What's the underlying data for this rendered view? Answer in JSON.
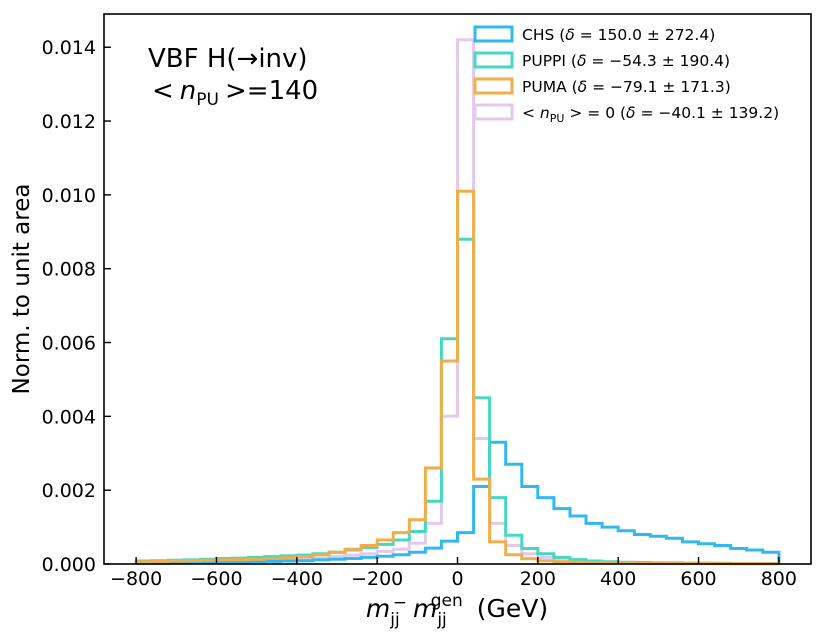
{
  "chart_data": {
    "type": "histogram-step",
    "annotation": {
      "process_text": "VBF H(→inv)",
      "pileup_lt": "<",
      "pileup_var": "n",
      "pileup_sub": "PU",
      "pileup_gt": ">",
      "pileup_value": "=140"
    },
    "xlabel": {
      "var": "m",
      "sub": "jj",
      "minus": "−",
      "var2": "m",
      "sub2": "jj",
      "sup2": "gen",
      "unit": " (GeV)"
    },
    "ylabel": "Norm. to unit area",
    "xlim": [
      -880,
      880
    ],
    "ylim": [
      0,
      0.0149
    ],
    "xticks": [
      -800,
      -600,
      -400,
      -200,
      0,
      200,
      400,
      600,
      800
    ],
    "xtick_labels": [
      "−800",
      "−600",
      "−400",
      "−200",
      "0",
      "200",
      "400",
      "600",
      "800"
    ],
    "yticks": [
      0,
      0.002,
      0.004,
      0.006,
      0.008,
      0.01,
      0.012,
      0.014
    ],
    "ytick_labels": [
      "0.000",
      "0.002",
      "0.004",
      "0.006",
      "0.008",
      "0.010",
      "0.012",
      "0.014"
    ],
    "bin_edges": [
      -800,
      -760,
      -720,
      -680,
      -640,
      -600,
      -560,
      -520,
      -480,
      -440,
      -400,
      -360,
      -320,
      -280,
      -240,
      -200,
      -160,
      -120,
      -80,
      -40,
      0,
      40,
      80,
      120,
      160,
      200,
      240,
      280,
      320,
      360,
      400,
      440,
      480,
      520,
      560,
      600,
      640,
      680,
      720,
      760,
      800
    ],
    "series": [
      {
        "name": "nPU0",
        "color": "#e5c8ee",
        "values": [
          4e-05,
          4e-05,
          5e-05,
          6e-05,
          7e-05,
          8e-05,
          9e-05,
          0.0001,
          0.00011,
          0.00012,
          0.00013,
          0.00016,
          0.0002,
          0.00024,
          0.00028,
          0.00034,
          0.0004,
          0.00056,
          0.0011,
          0.004,
          0.0142,
          0.0034,
          0.0011,
          0.0005,
          0.00028,
          0.00018,
          0.00012,
          9e-05,
          7e-05,
          5e-05,
          4e-05,
          3e-05,
          3e-05,
          2e-05,
          2e-05,
          2e-05,
          1e-05,
          1e-05,
          1e-05,
          1e-05
        ]
      },
      {
        "name": "CHS",
        "color": "#30b8f0",
        "values": [
          2e-05,
          2e-05,
          3e-05,
          3e-05,
          4e-05,
          4e-05,
          5e-05,
          6e-05,
          7e-05,
          8e-05,
          9e-05,
          0.00011,
          0.00013,
          0.00015,
          0.00018,
          0.00021,
          0.00025,
          0.00032,
          0.00043,
          0.00062,
          0.00085,
          0.0021,
          0.0033,
          0.0027,
          0.0021,
          0.0018,
          0.0015,
          0.0013,
          0.0011,
          0.001,
          0.0009,
          0.0008,
          0.00075,
          0.0007,
          0.0006,
          0.00055,
          0.0005,
          0.00042,
          0.00038,
          0.00032
        ]
      },
      {
        "name": "PUPPI",
        "color": "#45d8c0",
        "values": [
          8e-05,
          9e-05,
          0.0001,
          0.00011,
          0.00013,
          0.00015,
          0.00016,
          0.00018,
          0.0002,
          0.00022,
          0.00024,
          0.00028,
          0.00032,
          0.00038,
          0.00045,
          0.00053,
          0.00065,
          0.00088,
          0.0017,
          0.0061,
          0.0088,
          0.0045,
          0.0018,
          0.00078,
          0.00042,
          0.00028,
          0.00018,
          0.00012,
          8e-05,
          6e-05,
          5e-05,
          4e-05,
          3e-05,
          3e-05,
          2e-05,
          2e-05,
          2e-05,
          1e-05,
          1e-05,
          1e-05
        ]
      },
      {
        "name": "PUMA",
        "color": "#f0ae4a",
        "values": [
          6e-05,
          7e-05,
          8e-05,
          9e-05,
          0.0001,
          0.00011,
          0.00012,
          0.00013,
          0.00015,
          0.00017,
          0.0002,
          0.00025,
          0.00032,
          0.0004,
          0.0005,
          0.00065,
          0.00085,
          0.0012,
          0.0026,
          0.0055,
          0.0101,
          0.0023,
          0.0006,
          0.00025,
          0.00014,
          9e-05,
          6e-05,
          5e-05,
          4e-05,
          3e-05,
          3e-05,
          2e-05,
          2e-05,
          2e-05,
          1e-05,
          1e-05,
          1e-05,
          1e-05,
          1e-05,
          1e-05
        ]
      }
    ],
    "legend": [
      {
        "series": "CHS",
        "color": "#30b8f0",
        "name": "CHS",
        "delta_value": "150.0",
        "delta_pm": "272.4"
      },
      {
        "series": "PUPPI",
        "color": "#45d8c0",
        "name": "PUPPI",
        "delta_value": "−54.3",
        "delta_pm": "190.4"
      },
      {
        "series": "PUMA",
        "color": "#f0ae4a",
        "name": "PUMA",
        "delta_value": "−79.1",
        "delta_pm": "171.3"
      },
      {
        "series": "nPU0",
        "color": "#e5c8ee",
        "name": "nPU0",
        "npu_lt": "<",
        "npu_var": "n",
        "npu_sub": "PU",
        "npu_gt": ">",
        "npu_eq": "= 0",
        "delta_value": "−40.1",
        "delta_pm": "139.2"
      }
    ],
    "legend_delta_symbol": "δ",
    "legend_eq": " = ",
    "legend_pm": " ± ",
    "legend_position": "top-right"
  }
}
